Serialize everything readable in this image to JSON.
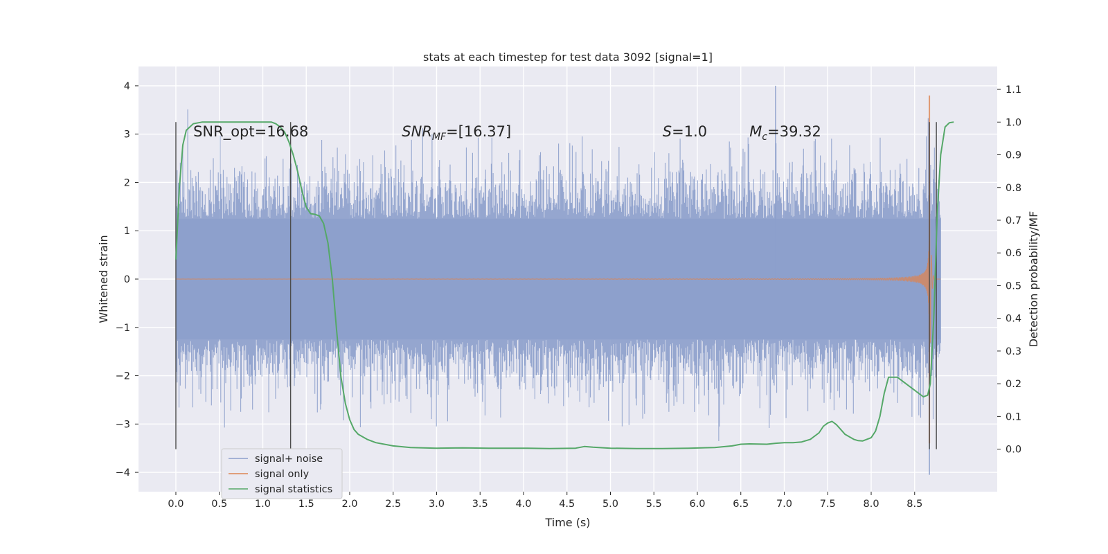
{
  "chart_data": {
    "type": "line",
    "title": "stats at each timestep for test data 3092 [signal=1]",
    "xlabel": "Time (s)",
    "ylabel": "Whitened strain",
    "ylabel_right": "Detection probability/MF",
    "xlim": [
      -0.43,
      9.45
    ],
    "ylim": [
      -4.4,
      4.4
    ],
    "ylim_right": [
      -0.13,
      1.17
    ],
    "x_ticks": [
      0.0,
      0.5,
      1.0,
      1.5,
      2.0,
      2.5,
      3.0,
      3.5,
      4.0,
      4.5,
      5.0,
      5.5,
      6.0,
      6.5,
      7.0,
      7.5,
      8.0,
      8.5
    ],
    "x_tick_labels": [
      "0.0",
      "0.5",
      "1.0",
      "1.5",
      "2.0",
      "2.5",
      "3.0",
      "3.5",
      "4.0",
      "4.5",
      "5.0",
      "5.5",
      "6.0",
      "6.5",
      "7.0",
      "7.5",
      "8.0",
      "8.5"
    ],
    "y_ticks": [
      4,
      3,
      2,
      1,
      0,
      -1,
      -2,
      -3,
      -4
    ],
    "y_tick_labels": [
      "4",
      "3",
      "2",
      "1",
      "0",
      "−1",
      "−2",
      "−3",
      "−4"
    ],
    "y_right_ticks": [
      1.1,
      1.0,
      0.9,
      0.8,
      0.7,
      0.6,
      0.5,
      0.4,
      0.3,
      0.2,
      0.1,
      0.0
    ],
    "y_right_tick_labels": [
      "1.1",
      "1.0",
      "0.9",
      "0.8",
      "0.7",
      "0.6",
      "0.5",
      "0.4",
      "0.3",
      "0.2",
      "0.1",
      "0.0"
    ],
    "grid": true,
    "legend_position": "lower-left",
    "series": [
      {
        "name": "signal+ noise",
        "color": "#8c9fcb",
        "kind": "noise",
        "t_start": 0.0,
        "t_end": 8.8,
        "core_band": [
          -1.25,
          1.25
        ],
        "typical_peak": [
          -2.2,
          2.4
        ],
        "max_value": 4.0,
        "min_value": -4.05
      },
      {
        "name": "signal only",
        "color": "#dd8452",
        "kind": "chirp",
        "t_start": 0.0,
        "t_end": 8.8,
        "merger_time": 8.67,
        "peak_amplitude": [
          -3.4,
          3.8
        ]
      },
      {
        "name": "signal statistics",
        "color": "#55a868",
        "axis": "right",
        "x": [
          0.0,
          0.04,
          0.08,
          0.12,
          0.2,
          0.3,
          0.5,
          0.8,
          1.0,
          1.1,
          1.15,
          1.2,
          1.25,
          1.3,
          1.35,
          1.4,
          1.45,
          1.5,
          1.55,
          1.6,
          1.65,
          1.7,
          1.75,
          1.8,
          1.85,
          1.9,
          1.95,
          2.0,
          2.05,
          2.1,
          2.2,
          2.3,
          2.5,
          2.7,
          3.0,
          3.3,
          3.6,
          4.0,
          4.3,
          4.6,
          4.7,
          4.8,
          5.0,
          5.3,
          5.6,
          5.9,
          6.2,
          6.4,
          6.5,
          6.6,
          6.8,
          6.9,
          7.0,
          7.1,
          7.2,
          7.3,
          7.4,
          7.45,
          7.5,
          7.55,
          7.6,
          7.7,
          7.8,
          7.85,
          7.9,
          8.0,
          8.05,
          8.1,
          8.15,
          8.2,
          8.3,
          8.4,
          8.5,
          8.6,
          8.65,
          8.68,
          8.72,
          8.76,
          8.8,
          8.85,
          8.9,
          8.95
        ],
        "values": [
          0.58,
          0.8,
          0.93,
          0.975,
          0.995,
          1.0,
          1.0,
          1.0,
          1.0,
          1.0,
          0.995,
          0.985,
          0.97,
          0.94,
          0.9,
          0.85,
          0.79,
          0.74,
          0.72,
          0.718,
          0.713,
          0.69,
          0.63,
          0.52,
          0.36,
          0.22,
          0.14,
          0.09,
          0.06,
          0.045,
          0.03,
          0.02,
          0.01,
          0.005,
          0.003,
          0.004,
          0.003,
          0.003,
          0.002,
          0.003,
          0.008,
          0.006,
          0.003,
          0.002,
          0.002,
          0.003,
          0.005,
          0.01,
          0.015,
          0.016,
          0.015,
          0.018,
          0.02,
          0.02,
          0.022,
          0.03,
          0.05,
          0.07,
          0.08,
          0.085,
          0.075,
          0.045,
          0.03,
          0.026,
          0.025,
          0.035,
          0.055,
          0.1,
          0.17,
          0.22,
          0.22,
          0.2,
          0.18,
          0.16,
          0.165,
          0.2,
          0.4,
          0.72,
          0.9,
          0.985,
          0.998,
          1.0
        ]
      }
    ],
    "vlines": [
      0.0,
      1.32,
      8.67,
      8.75
    ],
    "vline_color": "#4c4c4c",
    "annotations": [
      {
        "text": "SNR_opt=16.68",
        "x": 0.2,
        "y": 3.05
      },
      {
        "text": "SNR",
        "sub": "MF",
        "tail": "=[16.37]",
        "italic": true,
        "x": 2.6,
        "y": 3.05
      },
      {
        "text": "S",
        "tail": "=1.0",
        "italic": true,
        "x": 5.6,
        "y": 3.05
      },
      {
        "text": "M",
        "sub": "c",
        "tail": "=39.32",
        "italic": true,
        "x": 6.6,
        "y": 3.05
      }
    ]
  }
}
